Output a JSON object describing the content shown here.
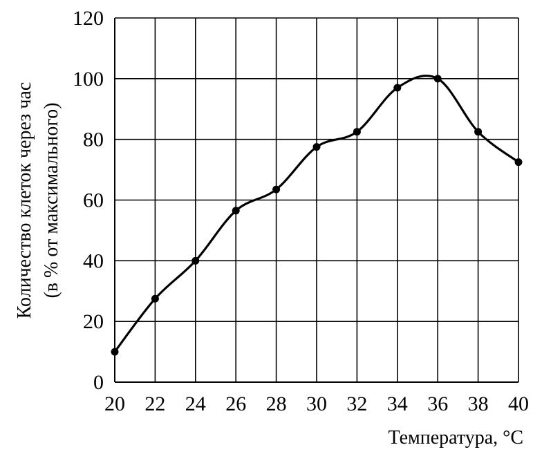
{
  "chart_data": {
    "type": "line",
    "title": "",
    "xlabel": "Температура, °C",
    "ylabel": [
      "Количество клеток через час",
      "(в % от максимального)"
    ],
    "x_ticks": [
      20,
      22,
      24,
      26,
      28,
      30,
      32,
      34,
      36,
      38,
      40
    ],
    "y_ticks": [
      0,
      20,
      40,
      60,
      80,
      100,
      120
    ],
    "xlim": [
      20,
      40
    ],
    "ylim": [
      0,
      120
    ],
    "grid": true,
    "smooth": true,
    "series": [
      {
        "x": [
          20,
          22,
          24,
          26,
          28,
          30,
          32,
          34,
          36,
          38,
          40
        ],
        "values": [
          10,
          27.5,
          40,
          56.5,
          63.5,
          77.5,
          82.5,
          97,
          100,
          82.5,
          72.5
        ]
      }
    ],
    "color": "#000000"
  }
}
